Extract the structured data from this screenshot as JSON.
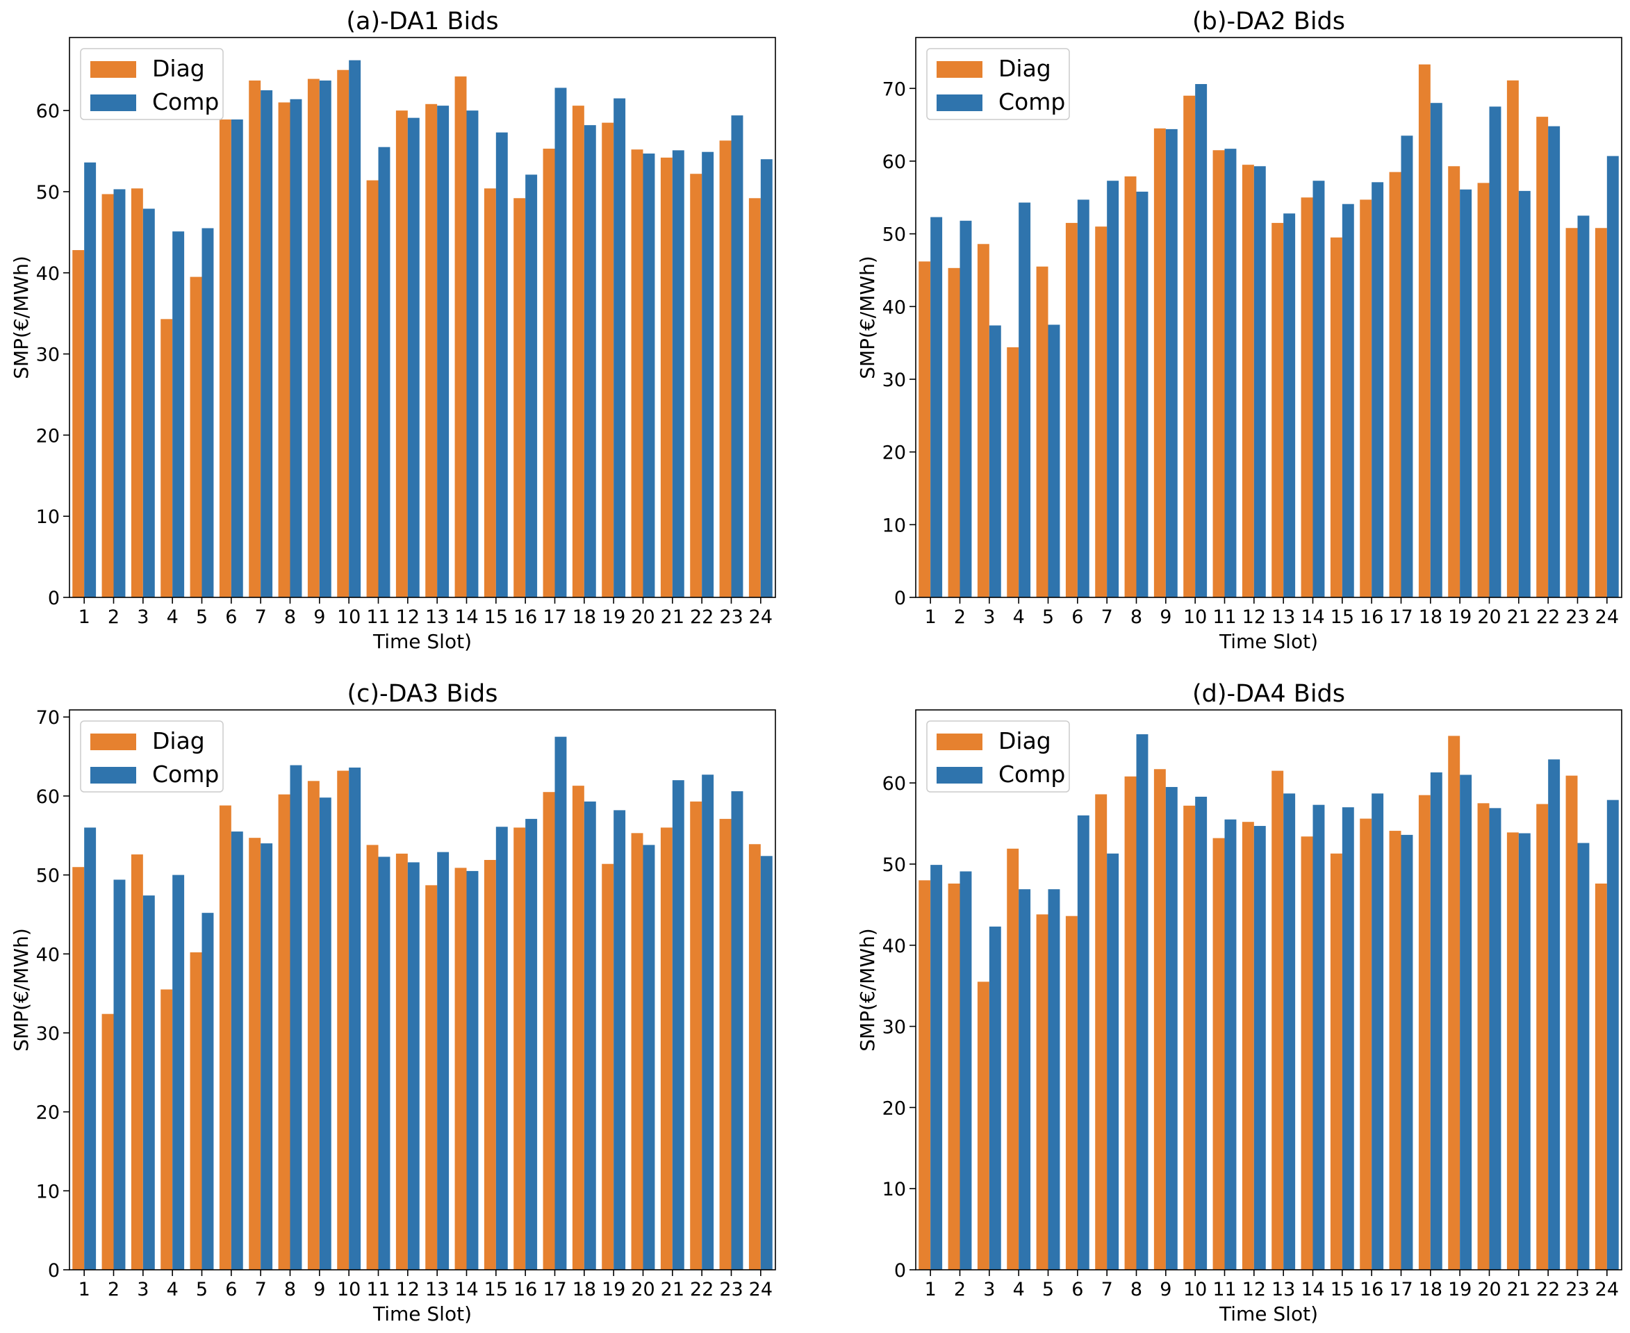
{
  "colors": {
    "diag": "#e6812f",
    "comp": "#2f74ad"
  },
  "chart_data": [
    {
      "type": "bar",
      "title": "(a)-DA1 Bids",
      "xlabel": "Time Slot)",
      "ylabel": "SMP(€/MWh)",
      "ylim": [
        0,
        69
      ],
      "yticks": [
        0,
        10,
        20,
        30,
        40,
        50,
        60
      ],
      "legend": "top-left",
      "categories": [
        "1",
        "2",
        "3",
        "4",
        "5",
        "6",
        "7",
        "8",
        "9",
        "10",
        "11",
        "12",
        "13",
        "14",
        "15",
        "16",
        "17",
        "18",
        "19",
        "20",
        "21",
        "22",
        "23",
        "24"
      ],
      "series": [
        {
          "name": "Diag",
          "values": [
            42.8,
            49.7,
            50.4,
            34.3,
            39.5,
            58.9,
            63.7,
            61.0,
            63.9,
            65.0,
            51.4,
            60.0,
            60.8,
            64.2,
            50.4,
            49.2,
            55.3,
            60.6,
            58.5,
            55.2,
            54.2,
            52.2,
            56.3,
            49.2
          ]
        },
        {
          "name": "Comp",
          "values": [
            53.6,
            50.3,
            47.9,
            45.1,
            45.5,
            58.9,
            62.5,
            61.4,
            63.7,
            66.2,
            55.5,
            59.1,
            60.6,
            60.0,
            57.3,
            52.1,
            62.8,
            58.2,
            61.5,
            54.7,
            55.1,
            54.9,
            59.4,
            54.0
          ]
        }
      ]
    },
    {
      "type": "bar",
      "title": "(b)-DA2 Bids",
      "xlabel": "Time Slot)",
      "ylabel": "SMP(€/MWh)",
      "ylim": [
        0,
        77
      ],
      "yticks": [
        0,
        10,
        20,
        30,
        40,
        50,
        60,
        70
      ],
      "legend": "top-left",
      "categories": [
        "1",
        "2",
        "3",
        "4",
        "5",
        "6",
        "7",
        "8",
        "9",
        "10",
        "11",
        "12",
        "13",
        "14",
        "15",
        "16",
        "17",
        "18",
        "19",
        "20",
        "21",
        "22",
        "23",
        "24"
      ],
      "series": [
        {
          "name": "Diag",
          "values": [
            46.2,
            45.3,
            48.6,
            34.4,
            45.5,
            51.5,
            51.0,
            57.9,
            64.5,
            69.0,
            61.5,
            59.5,
            51.5,
            55.0,
            49.5,
            54.7,
            58.5,
            73.3,
            59.3,
            57.0,
            71.1,
            66.1,
            50.8,
            50.8
          ]
        },
        {
          "name": "Comp",
          "values": [
            52.3,
            51.8,
            37.4,
            54.3,
            37.5,
            54.7,
            57.3,
            55.8,
            64.4,
            70.6,
            61.7,
            59.3,
            52.8,
            57.3,
            54.1,
            57.1,
            63.5,
            68.0,
            56.1,
            67.5,
            55.9,
            64.8,
            52.5,
            60.7
          ]
        }
      ]
    },
    {
      "type": "bar",
      "title": "(c)-DA3 Bids",
      "xlabel": "Time Slot)",
      "ylabel": "SMP(€/MWh)",
      "ylim": [
        0,
        70.9
      ],
      "yticks": [
        0,
        10,
        20,
        30,
        40,
        50,
        60,
        70
      ],
      "legend": "top-left",
      "categories": [
        "1",
        "2",
        "3",
        "4",
        "5",
        "6",
        "7",
        "8",
        "9",
        "10",
        "11",
        "12",
        "13",
        "14",
        "15",
        "16",
        "17",
        "18",
        "19",
        "20",
        "21",
        "22",
        "23",
        "24"
      ],
      "series": [
        {
          "name": "Diag",
          "values": [
            51.0,
            32.4,
            52.6,
            35.5,
            40.2,
            58.8,
            54.7,
            60.2,
            61.9,
            63.2,
            53.8,
            52.7,
            48.7,
            50.9,
            51.9,
            56.0,
            60.5,
            61.3,
            51.4,
            55.3,
            56.0,
            59.3,
            57.1,
            53.9
          ]
        },
        {
          "name": "Comp",
          "values": [
            56.0,
            49.4,
            47.4,
            50.0,
            45.2,
            55.5,
            54.0,
            63.9,
            59.8,
            63.6,
            52.3,
            51.6,
            52.9,
            50.5,
            56.1,
            57.1,
            67.5,
            59.3,
            58.2,
            53.8,
            62.0,
            62.7,
            60.6,
            52.4
          ]
        }
      ]
    },
    {
      "type": "bar",
      "title": "(d)-DA4 Bids",
      "xlabel": "Time Slot)",
      "ylabel": "SMP(€/MWh)",
      "ylim": [
        0,
        69
      ],
      "yticks": [
        0,
        10,
        20,
        30,
        40,
        50,
        60
      ],
      "legend": "top-left",
      "categories": [
        "1",
        "2",
        "3",
        "4",
        "5",
        "6",
        "7",
        "8",
        "9",
        "10",
        "11",
        "12",
        "13",
        "14",
        "15",
        "16",
        "17",
        "18",
        "19",
        "20",
        "21",
        "22",
        "23",
        "24"
      ],
      "series": [
        {
          "name": "Diag",
          "values": [
            48.0,
            47.6,
            35.5,
            51.9,
            43.8,
            43.6,
            58.6,
            60.8,
            61.7,
            57.2,
            53.2,
            55.2,
            61.5,
            53.4,
            51.3,
            55.6,
            54.1,
            58.5,
            65.8,
            57.5,
            53.9,
            57.4,
            60.9,
            47.6
          ]
        },
        {
          "name": "Comp",
          "values": [
            49.9,
            49.1,
            42.3,
            46.9,
            46.9,
            56.0,
            51.3,
            66.0,
            59.5,
            58.3,
            55.5,
            54.7,
            58.7,
            57.3,
            57.0,
            58.7,
            53.6,
            61.3,
            61.0,
            56.9,
            53.8,
            62.9,
            52.6,
            57.9
          ]
        }
      ]
    }
  ]
}
